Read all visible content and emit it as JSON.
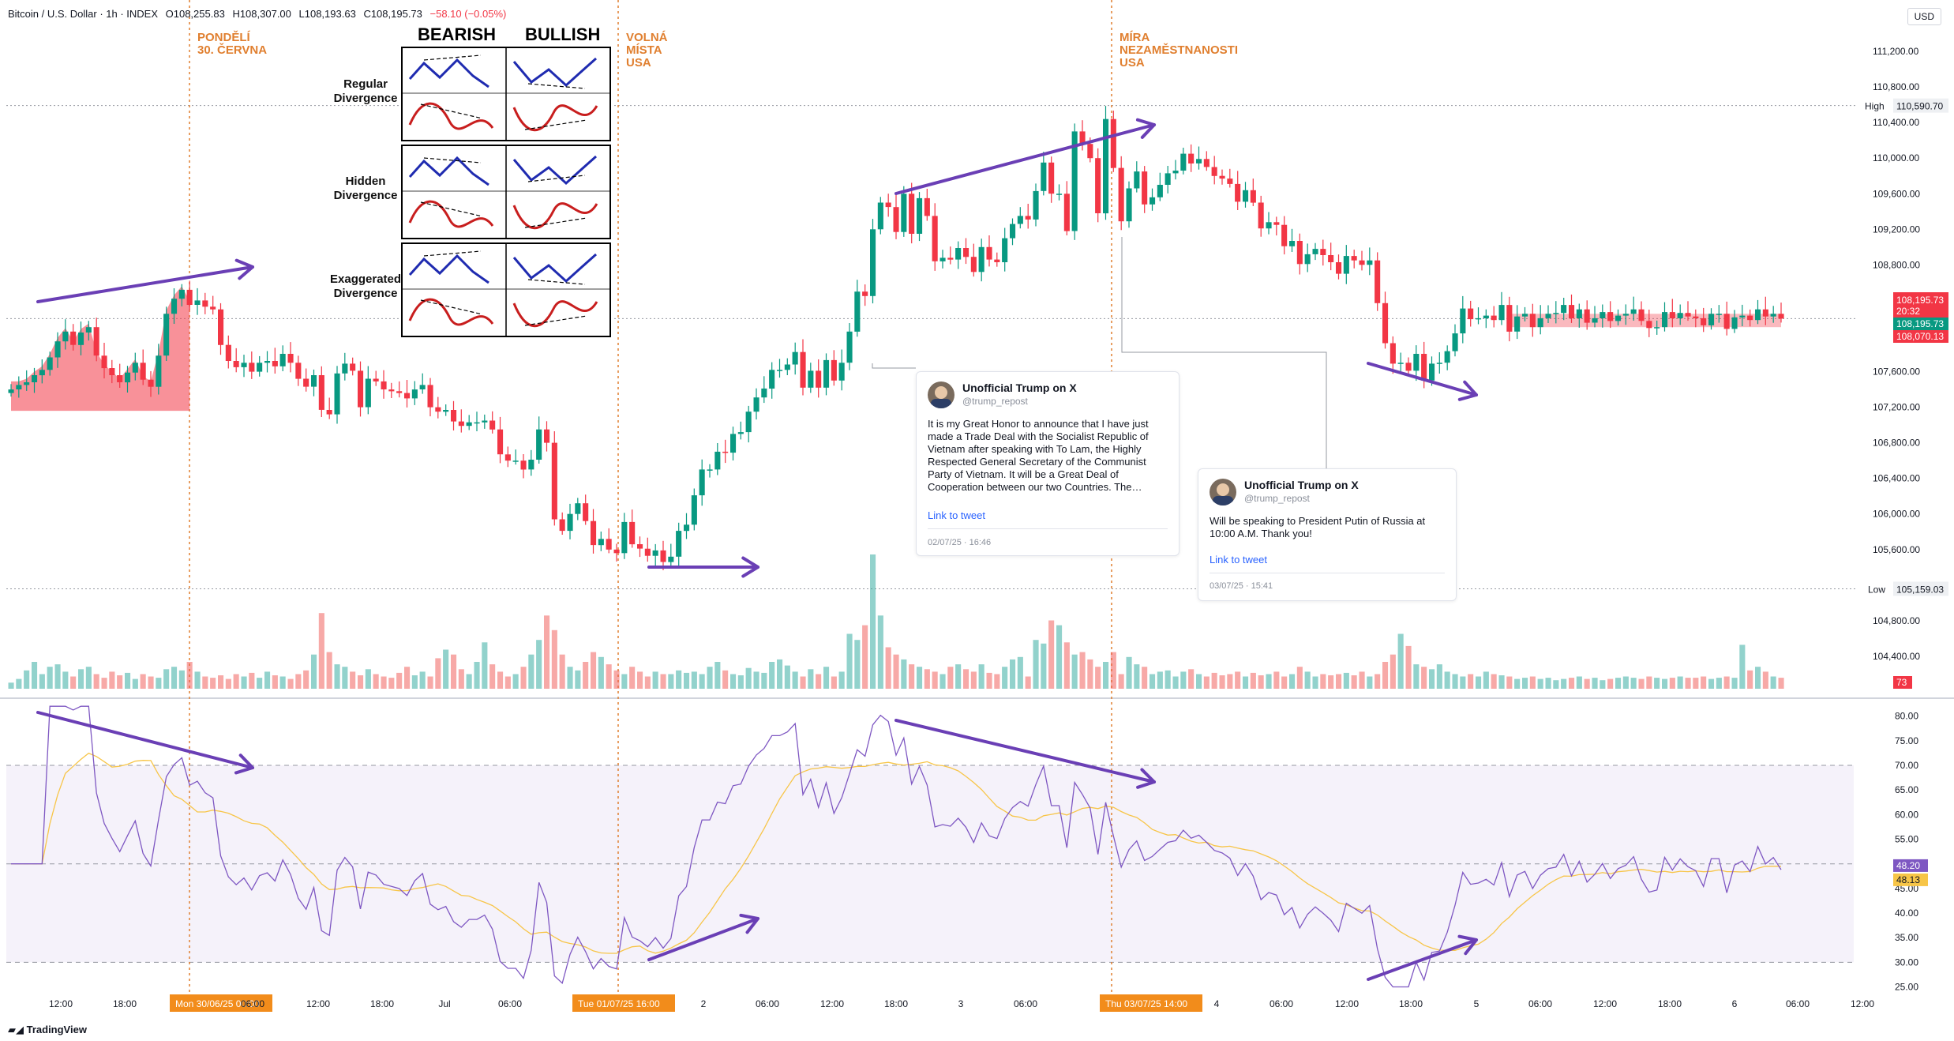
{
  "header": {
    "symbol": "Bitcoin / U.S. Dollar · 1h · INDEX",
    "open": "O108,255.83",
    "high": "H108,307.00",
    "low": "L108,193.63",
    "close": "C108,195.73",
    "change": "−58.10 (−0.05%)"
  },
  "currency": "USD",
  "events": [
    {
      "label": "PONDĚLÍ\n30. ČERVNA"
    },
    {
      "label": "VOLNÁ\nMÍSTA\nUSA"
    },
    {
      "label": "MÍRA\nNEZAMĚSTNANOSTI\nUSA"
    }
  ],
  "divergence_legend": {
    "bearish": "BEARISH",
    "bullish": "BULLISH",
    "rows": [
      "Regular\nDivergence",
      "Hidden\nDivergence",
      "Exaggerated\nDivergence"
    ]
  },
  "tweets": [
    {
      "author": "Unofficial Trump on X",
      "handle": "@trump_repost",
      "text": "It is my Great Honor to announce that I have just made a Trade Deal with the Socialist Republic of Vietnam after speaking with To Lam, the Highly Respected General Secretary of the Communist Party of Vietnam. It will be a Great Deal of Cooperation between our two Countries. The…",
      "link": "Link to tweet",
      "date": "02/07/25 · 16:46"
    },
    {
      "author": "Unofficial Trump on X",
      "handle": "@trump_repost",
      "text": "Will be speaking to President Putin of Russia at 10:00 A.M. Thank you!",
      "link": "Link to tweet",
      "date": "03/07/25 · 15:41"
    }
  ],
  "footer": {
    "brand": "TradingView"
  },
  "chart_data": [
    {
      "type": "candlestick",
      "ylim": [
        104000,
        111600
      ],
      "y_ticks": [
        "111,200.00",
        "110,800.00",
        "110,400.00",
        "110,000.00",
        "109,600.00",
        "109,200.00",
        "108,800.00",
        "107,600.00",
        "107,200.00",
        "106,800.00",
        "106,400.00",
        "106,000.00",
        "105,600.00",
        "104,800.00",
        "104,400.00"
      ],
      "high_marker": {
        "label": "High",
        "value": "110,590.70",
        "y": 110590.7
      },
      "low_marker": {
        "label": "Low",
        "value": "105,159.03",
        "y": 105159.03
      },
      "price_badges": [
        "108,195.73",
        "20:32",
        "108,195.73",
        "108,070.13"
      ],
      "volume_badge": "73",
      "closes": [
        107400,
        107450,
        107480,
        107560,
        107620,
        107760,
        107940,
        108050,
        107900,
        108040,
        108100,
        107780,
        107640,
        107560,
        107480,
        107590,
        107700,
        107510,
        107430,
        107780,
        108250,
        108420,
        108520,
        108350,
        108400,
        108330,
        108300,
        107900,
        107720,
        107650,
        107700,
        107600,
        107700,
        107720,
        107660,
        107800,
        107700,
        107520,
        107430,
        107560,
        107170,
        107120,
        107580,
        107690,
        107610,
        107200,
        107520,
        107490,
        107400,
        107380,
        107360,
        107300,
        107400,
        107450,
        107200,
        107150,
        107170,
        107040,
        106990,
        107030,
        107030,
        107050,
        106950,
        106670,
        106600,
        106600,
        106500,
        106610,
        106950,
        106800,
        105940,
        105810,
        106000,
        106120,
        105920,
        105650,
        105720,
        105600,
        105560,
        105910,
        105660,
        105610,
        105530,
        105590,
        105460,
        105520,
        105810,
        105880,
        106210,
        106500,
        106500,
        106700,
        106690,
        106900,
        106920,
        107150,
        107310,
        107410,
        107620,
        107620,
        107680,
        107820,
        107420,
        107610,
        107420,
        107730,
        107500,
        107700,
        108050,
        108500,
        108450,
        109200,
        109500,
        109450,
        109170,
        109600,
        109150,
        109550,
        109350,
        108840,
        108880,
        108860,
        108990,
        108890,
        108720,
        109000,
        108860,
        108830,
        109100,
        109260,
        109350,
        109310,
        109630,
        109950,
        109600,
        109600,
        109180,
        110300,
        110160,
        110000,
        109380,
        110440,
        109890,
        109290,
        109660,
        109850,
        109480,
        109560,
        109700,
        109830,
        109860,
        110050,
        109940,
        109990,
        109900,
        109800,
        109770,
        109710,
        109510,
        109640,
        109500,
        109210,
        109280,
        109250,
        109010,
        109070,
        108810,
        108920,
        108980,
        108910,
        108830,
        108700,
        108900,
        108850,
        108800,
        108850,
        108370,
        107920,
        107690,
        107700,
        107610,
        107800,
        107500,
        107690,
        107700,
        107830,
        108030,
        108310,
        108190,
        108200,
        108230,
        108180,
        108350,
        108050,
        108220,
        108250,
        108100,
        108200,
        108250,
        108260,
        108350,
        108200,
        108300,
        108150,
        108200,
        108270,
        108170,
        108230,
        108250,
        108300,
        108170,
        108090,
        108100,
        108270,
        108200,
        108260,
        108220,
        108200,
        108120,
        108250,
        108250,
        108080,
        108210,
        108230,
        108180,
        108300,
        108220,
        108250,
        108196
      ],
      "volume": [
        5,
        8,
        15,
        22,
        12,
        18,
        20,
        14,
        10,
        16,
        18,
        12,
        9,
        14,
        11,
        13,
        8,
        12,
        10,
        9,
        16,
        18,
        15,
        22,
        14,
        10,
        9,
        11,
        8,
        12,
        10,
        13,
        9,
        14,
        11,
        10,
        8,
        12,
        15,
        28,
        62,
        30,
        20,
        18,
        14,
        11,
        16,
        12,
        10,
        9,
        13,
        18,
        11,
        14,
        10,
        25,
        32,
        28,
        16,
        12,
        22,
        38,
        20,
        14,
        10,
        12,
        18,
        28,
        40,
        60,
        48,
        28,
        18,
        15,
        22,
        30,
        26,
        20,
        15,
        12,
        18,
        14,
        10,
        14,
        12,
        12,
        15,
        13,
        14,
        12,
        18,
        22,
        15,
        12,
        11,
        17,
        14,
        13,
        22,
        24,
        19,
        14,
        10,
        16,
        12,
        18,
        10,
        14,
        45,
        40,
        52,
        110,
        60,
        34,
        28,
        24,
        20,
        18,
        16,
        14,
        12,
        18,
        20,
        16,
        14,
        20,
        13,
        12,
        18,
        24,
        26,
        10,
        40,
        37,
        56,
        52,
        38,
        28,
        30,
        24,
        18,
        22,
        30,
        12,
        26,
        20,
        18,
        12,
        14,
        15,
        10,
        14,
        16,
        12,
        10,
        13,
        11,
        12,
        14,
        10,
        13,
        11,
        12,
        14,
        10,
        12,
        18,
        14,
        10,
        12,
        11,
        12,
        13,
        11,
        14,
        10,
        12,
        22,
        28,
        45,
        35,
        20,
        18,
        16,
        20,
        14,
        12,
        10,
        12,
        10,
        14,
        12,
        11,
        10,
        8,
        9,
        10,
        8,
        9,
        7,
        8,
        9,
        10,
        8,
        9,
        7,
        8,
        9,
        10,
        9,
        8,
        10,
        9,
        8,
        9,
        10,
        9,
        9,
        10,
        8,
        9,
        10,
        9,
        36,
        15,
        18,
        14,
        10,
        9,
        12,
        15,
        13,
        10,
        8
      ]
    },
    {
      "type": "line",
      "name": "RSI",
      "ylim": [
        23,
        83
      ],
      "y_ticks": [
        "80.00",
        "75.00",
        "70.00",
        "65.00",
        "60.00",
        "55.00",
        "50.00",
        "45.00",
        "40.00",
        "35.00",
        "30.00",
        "25.00"
      ],
      "bands": [
        30,
        50,
        70
      ],
      "rsi_badge": "48.20",
      "ma_badge": "48.13",
      "x_ticks": [
        "12:00",
        "18:00",
        "Mon 30/06/25   00:00",
        "06:00",
        "12:00",
        "18:00",
        "Jul",
        "06:00",
        "Tue 01/07/25   16:00",
        "2",
        "06:00",
        "12:00",
        "18:00",
        "3",
        "06:00",
        "Thu 03/07/25   14:00",
        "4",
        "06:00",
        "12:00",
        "18:00",
        "5",
        "06:00",
        "12:00",
        "18:00",
        "6",
        "06:00",
        "12:00"
      ]
    }
  ]
}
